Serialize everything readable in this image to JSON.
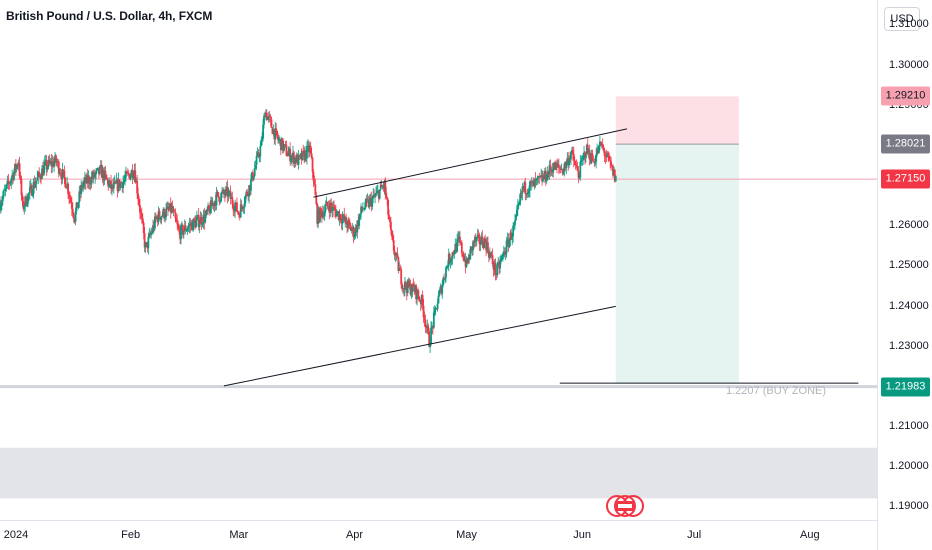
{
  "header": {
    "title": "British Pound / U.S. Dollar, 4h, FXCM"
  },
  "price_axis": {
    "currency": "USD",
    "ticks": [
      "1.31000",
      "1.30000",
      "1.29000",
      "1.26000",
      "1.25000",
      "1.24000",
      "1.23000",
      "1.21000",
      "1.20000",
      "1.19000"
    ],
    "tick_values": [
      1.31,
      1.3,
      1.29,
      1.26,
      1.25,
      1.24,
      1.23,
      1.21,
      1.2,
      1.19
    ]
  },
  "time_axis": {
    "labels": [
      "2024",
      "Feb",
      "Mar",
      "Apr",
      "May",
      "Jun",
      "Jul",
      "Aug"
    ],
    "dates": [
      "2024-01-01",
      "2024-02-01",
      "2024-03-01",
      "2024-04-01",
      "2024-05-01",
      "2024-06-01",
      "2024-07-01",
      "2024-08-01"
    ]
  },
  "price_labels": [
    {
      "name": "target",
      "text": "1.29210",
      "value": 1.2921,
      "bg": "#f7a1b0",
      "fg": "#131722"
    },
    {
      "name": "entry",
      "text": "1.28021",
      "value": 1.28021,
      "bg": "#787b86",
      "fg": "#ffffff"
    },
    {
      "name": "last-price",
      "text": "1.27150",
      "value": 1.2715,
      "bg": "#f23645",
      "fg": "#ffffff"
    },
    {
      "name": "support",
      "text": "1.21983",
      "value": 1.21983,
      "bg": "#089981",
      "fg": "#ffffff"
    }
  ],
  "annotation": {
    "buy_zone": "1.2207 (BUY ZONE)"
  },
  "colors": {
    "up": "#089981",
    "down": "#f23645",
    "line": "#131722",
    "profit_zone": "#e6f4f1",
    "loss_zone": "#fde0e5",
    "demand_zone": "#e3e4e8"
  },
  "chart_data": {
    "type": "candlestick",
    "title": "British Pound / U.S. Dollar, 4h, FXCM",
    "y_unit": "USD",
    "ylim": [
      1.1866,
      1.3161
    ],
    "xlim": [
      "2023-12-28",
      "2024-08-19"
    ],
    "price_path": [
      [
        "2023-12-28",
        1.2655
      ],
      [
        "2024-01-02",
        1.276
      ],
      [
        "2024-01-03",
        1.2645
      ],
      [
        "2024-01-06",
        1.27
      ],
      [
        "2024-01-09",
        1.2745
      ],
      [
        "2024-01-12",
        1.276
      ],
      [
        "2024-01-15",
        1.27
      ],
      [
        "2024-01-17",
        1.262
      ],
      [
        "2024-01-19",
        1.27
      ],
      [
        "2024-01-22",
        1.272
      ],
      [
        "2024-01-24",
        1.2735
      ],
      [
        "2024-01-27",
        1.269
      ],
      [
        "2024-01-30",
        1.271
      ],
      [
        "2024-02-02",
        1.274
      ],
      [
        "2024-02-05",
        1.254
      ],
      [
        "2024-02-08",
        1.262
      ],
      [
        "2024-02-12",
        1.264
      ],
      [
        "2024-02-14",
        1.258
      ],
      [
        "2024-02-17",
        1.26
      ],
      [
        "2024-02-21",
        1.262
      ],
      [
        "2024-02-24",
        1.267
      ],
      [
        "2024-02-27",
        1.268
      ],
      [
        "2024-03-01",
        1.263
      ],
      [
        "2024-03-04",
        1.27
      ],
      [
        "2024-03-07",
        1.28
      ],
      [
        "2024-03-08",
        1.2885
      ],
      [
        "2024-03-11",
        1.282
      ],
      [
        "2024-03-14",
        1.278
      ],
      [
        "2024-03-17",
        1.276
      ],
      [
        "2024-03-20",
        1.279
      ],
      [
        "2024-03-21",
        1.272
      ],
      [
        "2024-03-22",
        1.262
      ],
      [
        "2024-03-25",
        1.265
      ],
      [
        "2024-03-28",
        1.2625
      ],
      [
        "2024-04-01",
        1.258
      ],
      [
        "2024-04-03",
        1.264
      ],
      [
        "2024-04-06",
        1.2665
      ],
      [
        "2024-04-09",
        1.27
      ],
      [
        "2024-04-11",
        1.256
      ],
      [
        "2024-04-14",
        1.245
      ],
      [
        "2024-04-17",
        1.244
      ],
      [
        "2024-04-19",
        1.241
      ],
      [
        "2024-04-21",
        1.231
      ],
      [
        "2024-04-23",
        1.24
      ],
      [
        "2024-04-26",
        1.251
      ],
      [
        "2024-04-29",
        1.256
      ],
      [
        "2024-05-01",
        1.25
      ],
      [
        "2024-05-03",
        1.256
      ],
      [
        "2024-05-06",
        1.256
      ],
      [
        "2024-05-09",
        1.248
      ],
      [
        "2024-05-11",
        1.253
      ],
      [
        "2024-05-14",
        1.26
      ],
      [
        "2024-05-16",
        1.269
      ],
      [
        "2024-05-19",
        1.27
      ],
      [
        "2024-05-22",
        1.272
      ],
      [
        "2024-05-24",
        1.2745
      ],
      [
        "2024-05-27",
        1.274
      ],
      [
        "2024-05-29",
        1.278
      ],
      [
        "2024-05-31",
        1.2725
      ],
      [
        "2024-06-02",
        1.279
      ],
      [
        "2024-06-04",
        1.276
      ],
      [
        "2024-06-06",
        1.28
      ],
      [
        "2024-06-08",
        1.276
      ],
      [
        "2024-06-10",
        1.2715
      ]
    ],
    "trend_lines": [
      {
        "name": "channel-upper",
        "from": [
          "2024-03-21",
          1.267
        ],
        "to": [
          "2024-06-13",
          1.284
        ]
      },
      {
        "name": "channel-lower",
        "from": [
          "2024-02-26",
          1.22
        ],
        "to": [
          "2024-06-10",
          1.2398
        ]
      },
      {
        "name": "buy-zone-line",
        "from": [
          "2024-05-26",
          1.2207
        ],
        "to": [
          "2024-08-14",
          1.2207
        ]
      }
    ],
    "horizontal_lines": [
      {
        "name": "support-level",
        "value": 1.21983
      },
      {
        "name": "last-price-line",
        "value": 1.2715
      }
    ],
    "zones": [
      {
        "name": "demand-zone",
        "y_from": 1.2046,
        "y_to": 1.192
      },
      {
        "name": "short-position-loss",
        "x_from": "2024-06-10",
        "x_to": "2024-07-13",
        "y_from": 1.28021,
        "y_to": 1.2921
      },
      {
        "name": "short-position-profit",
        "x_from": "2024-06-10",
        "x_to": "2024-07-13",
        "y_from": 1.2207,
        "y_to": 1.28021
      }
    ],
    "grid": false,
    "legend": "none"
  }
}
